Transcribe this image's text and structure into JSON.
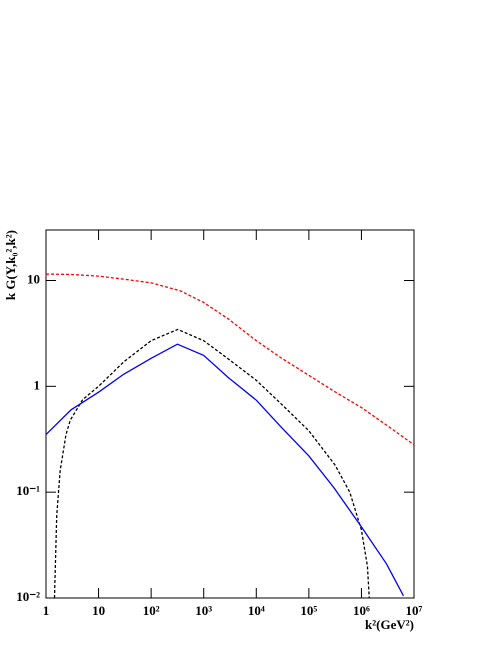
{
  "chart_data": {
    "type": "line",
    "x_label": "k²(GeV²)",
    "y_label": "k G(Y,k₀²,k²)",
    "log_x": true,
    "log_y": true,
    "xlim": [
      1,
      10000000
    ],
    "ylim": [
      0.01,
      30
    ],
    "xticks": [
      1,
      10,
      {
        "value": 100,
        "label": "10²"
      },
      {
        "value": 1000,
        "label": "10³"
      },
      {
        "value": 10000,
        "label": "10⁴"
      },
      {
        "value": 100000,
        "label": "10⁵"
      },
      {
        "value": 1000000,
        "label": "10⁶"
      },
      {
        "value": 10000000,
        "label": "10⁷"
      }
    ],
    "yticks": [
      {
        "value": 0.01,
        "label": "10⁻²"
      },
      {
        "value": 0.1,
        "label": "10⁻¹"
      },
      1,
      10
    ],
    "series": [
      {
        "color": "#ff0000",
        "dash": "3,2",
        "x": [
          1,
          3,
          10,
          30,
          100,
          355,
          1000,
          3000,
          10000,
          30000,
          100000,
          300000,
          1000000,
          3000000,
          10000000
        ],
        "values": [
          11.5,
          11.4,
          11.0,
          10.3,
          9.5,
          8.0,
          6.2,
          4.3,
          2.7,
          1.85,
          1.27,
          0.9,
          0.63,
          0.43,
          0.28
        ]
      },
      {
        "color": "#000000",
        "dash": "3,2",
        "x": [
          1.45,
          1.6,
          1.86,
          2.4,
          2.9,
          5,
          10,
          30,
          100,
          320,
          1000,
          3000,
          10000,
          30000,
          100000,
          316000,
          600000,
          1000000,
          1300000,
          1410000
        ],
        "values": [
          0.01,
          0.06,
          0.16,
          0.35,
          0.48,
          0.75,
          1.0,
          1.7,
          2.7,
          3.45,
          2.7,
          1.8,
          1.14,
          0.68,
          0.38,
          0.18,
          0.1,
          0.044,
          0.02,
          0.01
        ]
      },
      {
        "color": "#0000ff",
        "dash": null,
        "x": [
          1,
          3,
          10,
          30,
          100,
          316,
          1000,
          3000,
          10000,
          30000,
          100000,
          300000,
          1000000,
          3000000,
          6300000
        ],
        "values": [
          0.35,
          0.6,
          0.88,
          1.3,
          1.84,
          2.5,
          1.96,
          1.2,
          0.74,
          0.41,
          0.22,
          0.11,
          0.047,
          0.021,
          0.0105
        ]
      }
    ]
  }
}
